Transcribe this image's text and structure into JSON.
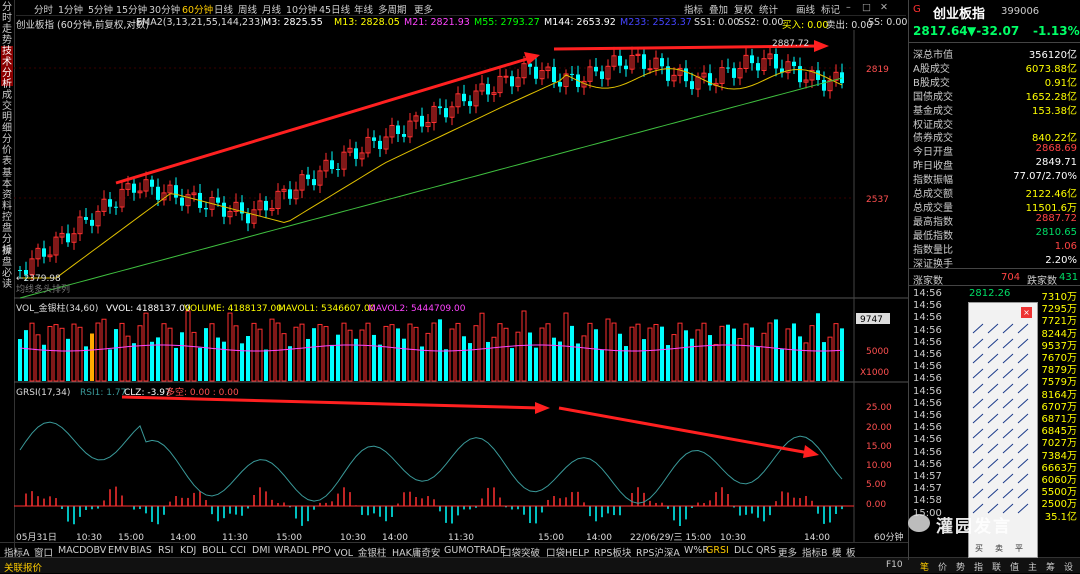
{
  "left_tabs": [
    "分时走势",
    "技术分析",
    "成交明细",
    "分价表",
    "基本资料",
    "控盘分析",
    "操盘必读"
  ],
  "top_toolbar": {
    "periods": [
      "分时",
      "1分钟",
      "5分钟",
      "15分钟",
      "30分钟",
      "60分钟",
      "日线",
      "周线",
      "月线",
      "10分钟",
      "45日线",
      "年线",
      "多周期",
      "更多"
    ],
    "active": "60分钟",
    "tools": [
      "指标",
      "叠加",
      "复权",
      "统计",
      "画线",
      "标记"
    ]
  },
  "info_bar": {
    "title": "创业板指 (60分钟,前复权,对数)",
    "ema": "EMA2(3,13,21,55,144,233)",
    "m3": "M3: 2825.55",
    "m13": "M13: 2828.05",
    "m21": "M21: 2821.93",
    "m55": "M55: 2793.27",
    "m144": "M144: 2653.92",
    "m233": "M233: 2523.37",
    "ss1": "SS1: 0.00",
    "ss2": "SS2: 0.00",
    "buy": "买入: 0.00",
    "sell": "卖出: 0.00",
    "ss": "SS: 0.00"
  },
  "price_axis": [
    "2819",
    "2537"
  ],
  "price_labels": {
    "high": "2887.72",
    "low": "←2379.98",
    "ma_line": "均线多头排列"
  },
  "volume_info": {
    "label": "VOL_金银柱(34,60)",
    "vvol": "VVOL: 4188137.00",
    "volume": "VOLUME: 4188137.00",
    "mavol1": "MAVOL1: 5346607.00",
    "mavol2": "MAVOL2: 5444709.00"
  },
  "volume_axis": [
    "9747",
    "5000",
    "X1000"
  ],
  "grsi_info": {
    "label": "GRSI(17,34)",
    "rsi1": "RSI1: 1.77",
    "clz": "CLZ: -3.97",
    "duokong": "多空: 0.00 : 0.00"
  },
  "grsi_axis": [
    "25.00",
    "20.00",
    "15.00",
    "10.00",
    "5.00",
    "0.00"
  ],
  "time_axis": [
    "05月31日",
    "10:30",
    "15:00",
    "14:00",
    "11:30",
    "15:00",
    "10:30",
    "14:00",
    "11:30",
    "15:00",
    "14:00",
    "22/06/29/三 15:00",
    "10:30",
    "14:00",
    "60分钟"
  ],
  "bottom_tabs": [
    "指标A",
    "窗口",
    "MACD",
    "OBV",
    "EMV",
    "BIAS",
    "RSI",
    "KDJ",
    "BOLL",
    "CCI",
    "DMI",
    "WR",
    "ADL",
    "PPO",
    "VOL_金银柱",
    "HAK庸奇安",
    "GUMOTRADE",
    "口袋突破",
    "口袋HELP",
    "RPS板块",
    "RPS沪深A",
    "W%R",
    "GRSI",
    "DLC",
    "QRS",
    "更多",
    "指标B",
    "模",
    "板"
  ],
  "bottom_active": "GRSI",
  "status": {
    "left": "关联报价",
    "right": [
      "F10",
      "笔",
      "价",
      "势",
      "指",
      "联",
      "值",
      "主",
      "筹",
      "设"
    ]
  },
  "right_panel": {
    "badge": "G",
    "name": "创业板指",
    "code": "399006",
    "price": "2817.64",
    "change": "▼-32.07",
    "pct": "-1.13%",
    "stats": [
      {
        "label": "深总市值",
        "value": "356120亿",
        "color": "#ffffff"
      },
      {
        "label": "A股成交",
        "value": "6073.88亿",
        "color": "#ffff00"
      },
      {
        "label": "B股成交",
        "value": "0.91亿",
        "color": "#ffff00"
      },
      {
        "label": "国债成交",
        "value": "1652.28亿",
        "color": "#ffff00"
      },
      {
        "label": "基金成交",
        "value": "153.38亿",
        "color": "#ffff00"
      },
      {
        "label": "权证成交",
        "value": "",
        "color": "#ffff00"
      },
      {
        "label": "债券成交",
        "value": "840.22亿",
        "color": "#ffff00"
      },
      {
        "label": "今日开盘",
        "value": "2868.69",
        "color": "#ff4444"
      },
      {
        "label": "昨日收盘",
        "value": "2849.71",
        "color": "#ffffff"
      },
      {
        "label": "指数振幅",
        "value": "77.07/2.70%",
        "color": "#ffffff"
      },
      {
        "label": "总成交额",
        "value": "2122.46亿",
        "color": "#ffff00"
      },
      {
        "label": "总成交量",
        "value": "11501.6万",
        "color": "#ffff00"
      },
      {
        "label": "最高指数",
        "value": "2887.72",
        "color": "#ff4444"
      },
      {
        "label": "最低指数",
        "value": "2810.65",
        "color": "#00dd66"
      },
      {
        "label": "指数量比",
        "value": "1.06",
        "color": "#ff4444"
      },
      {
        "label": "深证换手",
        "value": "2.20%",
        "color": "#ffffff"
      }
    ],
    "up_label": "涨家数",
    "up": "704",
    "down_label": "跌家数",
    "down": "431",
    "ticks": [
      {
        "time": "14:56",
        "price": "2812.26",
        "vol": "7310万"
      },
      {
        "time": "14:56",
        "price": "",
        "vol": "7295万"
      },
      {
        "time": "14:56",
        "price": "",
        "vol": "7721万"
      },
      {
        "time": "14:56",
        "price": "",
        "vol": "8244万"
      },
      {
        "time": "14:56",
        "price": "",
        "vol": "9537万"
      },
      {
        "time": "14:56",
        "price": "",
        "vol": "7670万"
      },
      {
        "time": "14:56",
        "price": "",
        "vol": "7879万"
      },
      {
        "time": "14:56",
        "price": "",
        "vol": "7579万"
      },
      {
        "time": "14:56",
        "price": "",
        "vol": "8164万"
      },
      {
        "time": "14:56",
        "price": "",
        "vol": "6707万"
      },
      {
        "time": "14:56",
        "price": "",
        "vol": "6871万"
      },
      {
        "time": "14:56",
        "price": "",
        "vol": "6845万"
      },
      {
        "time": "14:56",
        "price": "",
        "vol": "7027万"
      },
      {
        "time": "14:56",
        "price": "",
        "vol": "7384万"
      },
      {
        "time": "14:56",
        "price": "",
        "vol": "6663万"
      },
      {
        "time": "14:57",
        "price": "",
        "vol": "6060万"
      },
      {
        "time": "14:57",
        "price": "",
        "vol": "5500万"
      },
      {
        "time": "14:58",
        "price": "",
        "vol": "2500万"
      },
      {
        "time": "15:00",
        "price": "",
        "vol": "35.1亿"
      }
    ],
    "palette_buttons": [
      "买",
      "卖",
      "平"
    ],
    "watermark": "灌园发言"
  },
  "colors": {
    "up": "#ff3030",
    "down": "#00ffff",
    "ma_yellow": "#e0c000",
    "ma_green": "#3fbf3f",
    "arrow": "#ff2020",
    "grsi_line": "#3a9a9a"
  }
}
